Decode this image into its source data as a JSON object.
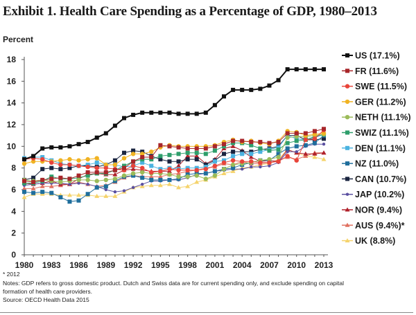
{
  "chart_data": {
    "type": "line",
    "title": "Exhibit 1. Health Care Spending as a Percentage of GDP, 1980–2013",
    "ylabel": "Percent",
    "xlabel": "",
    "x": [
      1980,
      1981,
      1982,
      1983,
      1984,
      1985,
      1986,
      1987,
      1988,
      1989,
      1990,
      1991,
      1992,
      1993,
      1994,
      1995,
      1996,
      1997,
      1998,
      1999,
      2000,
      2001,
      2002,
      2003,
      2004,
      2005,
      2006,
      2007,
      2008,
      2009,
      2010,
      2011,
      2012,
      2013
    ],
    "xticks": [
      "1980",
      "1983",
      "1986",
      "1989",
      "1992",
      "1995",
      "1998",
      "2001",
      "2004",
      "2007",
      "2010",
      "2013"
    ],
    "yticks": [
      "0",
      "2",
      "4",
      "6",
      "8",
      "10",
      "12",
      "14",
      "16",
      "18"
    ],
    "ylim": [
      0,
      18
    ],
    "xlim": [
      1980,
      2013
    ],
    "grid": false,
    "legend_placement": "right",
    "series": [
      {
        "name": "US (17.1%)",
        "color": "#111111",
        "marker": "square",
        "values": [
          8.8,
          9.1,
          9.8,
          9.9,
          9.9,
          10.0,
          10.2,
          10.4,
          10.8,
          11.2,
          11.9,
          12.6,
          12.9,
          13.1,
          13.1,
          13.1,
          13.1,
          13.0,
          13.0,
          13.0,
          13.1,
          13.8,
          14.6,
          15.2,
          15.2,
          15.2,
          15.3,
          15.6,
          16.1,
          17.1,
          17.1,
          17.1,
          17.1,
          17.1
        ]
      },
      {
        "name": "FR (11.6%)",
        "color": "#a8262a",
        "marker": "square",
        "values": [
          6.8,
          6.7,
          6.9,
          7.0,
          7.1,
          7.0,
          7.3,
          7.6,
          7.6,
          7.6,
          7.8,
          8.0,
          8.6,
          9.0,
          9.0,
          10.1,
          10.0,
          9.9,
          9.8,
          9.8,
          9.8,
          10.0,
          10.2,
          10.5,
          10.5,
          10.4,
          10.4,
          10.3,
          10.4,
          11.2,
          11.2,
          11.2,
          11.4,
          11.6
        ]
      },
      {
        "name": "SWE (11.5%)",
        "color": "#e8443a",
        "marker": "circle",
        "values": [
          8.8,
          8.9,
          8.8,
          8.5,
          8.3,
          8.3,
          8.2,
          8.1,
          8.0,
          8.0,
          7.9,
          7.8,
          8.2,
          8.0,
          7.6,
          7.7,
          7.9,
          7.8,
          7.8,
          7.8,
          7.9,
          8.2,
          8.5,
          8.7,
          8.6,
          8.6,
          8.5,
          8.5,
          8.6,
          9.1,
          8.7,
          10.6,
          10.7,
          11.5
        ]
      },
      {
        "name": "GER (11.2%)",
        "color": "#f0b323",
        "marker": "circle",
        "values": [
          8.4,
          8.6,
          8.6,
          8.6,
          8.7,
          8.8,
          8.7,
          8.8,
          8.9,
          8.3,
          8.3,
          8.9,
          9.3,
          9.3,
          9.5,
          9.9,
          10.1,
          10.0,
          10.0,
          10.0,
          10.0,
          10.1,
          10.4,
          10.6,
          10.4,
          10.5,
          10.3,
          10.2,
          10.5,
          11.4,
          11.3,
          11.0,
          11.1,
          11.2
        ]
      },
      {
        "name": "NETH (11.1%)",
        "color": "#9bbb59",
        "marker": "circle",
        "values": [
          6.9,
          6.8,
          6.9,
          6.8,
          6.7,
          6.8,
          6.9,
          6.9,
          6.8,
          6.9,
          7.0,
          7.3,
          7.5,
          7.6,
          7.5,
          7.5,
          7.4,
          7.2,
          7.2,
          7.3,
          7.0,
          7.3,
          7.9,
          8.3,
          8.4,
          8.5,
          8.7,
          8.8,
          9.0,
          10.8,
          10.9,
          10.9,
          11.0,
          11.1
        ]
      },
      {
        "name": "SWIZ (11.1%)",
        "color": "#2e9e6b",
        "marker": "square",
        "values": [
          6.6,
          6.6,
          6.8,
          7.2,
          7.0,
          7.0,
          7.1,
          7.3,
          7.5,
          7.5,
          7.8,
          8.2,
          8.6,
          8.8,
          8.8,
          9.1,
          9.2,
          9.3,
          9.4,
          9.4,
          9.3,
          9.6,
          10.0,
          10.3,
          10.3,
          10.1,
          9.8,
          9.6,
          9.7,
          10.3,
          10.5,
          10.6,
          10.9,
          11.1
        ]
      },
      {
        "name": "DEN (11.1%)",
        "color": "#4bb3e0",
        "marker": "square",
        "values": [
          8.9,
          9.0,
          9.0,
          8.7,
          8.4,
          8.3,
          8.2,
          8.3,
          8.5,
          8.3,
          8.3,
          8.1,
          8.2,
          8.5,
          8.2,
          7.9,
          8.0,
          7.9,
          8.0,
          8.0,
          8.1,
          8.6,
          8.7,
          9.1,
          9.3,
          9.3,
          9.5,
          9.7,
          9.9,
          11.0,
          10.7,
          10.6,
          10.8,
          11.1
        ]
      },
      {
        "name": "NZ (11.0%)",
        "color": "#1f6e9c",
        "marker": "square",
        "values": [
          5.8,
          5.7,
          5.8,
          5.7,
          5.3,
          4.9,
          5.0,
          5.6,
          6.2,
          6.3,
          6.8,
          7.2,
          7.3,
          7.1,
          6.9,
          6.9,
          6.9,
          7.0,
          7.4,
          7.5,
          7.5,
          7.7,
          7.9,
          8.0,
          8.3,
          8.5,
          8.7,
          8.7,
          9.3,
          9.8,
          10.0,
          10.1,
          10.3,
          11.0
        ]
      },
      {
        "name": "CAN (10.7%)",
        "color": "#1a2540",
        "marker": "square",
        "values": [
          6.9,
          7.1,
          7.9,
          8.0,
          7.9,
          8.0,
          8.2,
          8.2,
          8.1,
          8.3,
          8.7,
          9.4,
          9.6,
          9.5,
          9.1,
          8.8,
          8.6,
          8.6,
          8.8,
          8.8,
          8.3,
          8.7,
          9.3,
          9.5,
          9.5,
          9.5,
          9.7,
          9.8,
          10.0,
          11.0,
          11.0,
          10.6,
          10.6,
          10.7
        ]
      },
      {
        "name": "JAP (10.2%)",
        "color": "#5a4fa0",
        "marker": "circle-small",
        "values": [
          6.4,
          6.5,
          6.6,
          6.6,
          6.6,
          6.5,
          6.6,
          6.5,
          6.3,
          6.0,
          5.8,
          5.9,
          6.2,
          6.5,
          6.8,
          6.8,
          6.9,
          6.9,
          7.1,
          7.4,
          7.5,
          7.7,
          7.8,
          7.9,
          7.9,
          8.1,
          8.1,
          8.2,
          8.5,
          9.5,
          9.5,
          10.0,
          10.2,
          10.2
        ]
      },
      {
        "name": "NOR (9.4%)",
        "color": "#b0202a",
        "marker": "triangle",
        "values": [
          6.6,
          6.5,
          6.6,
          6.8,
          6.5,
          6.5,
          7.0,
          7.4,
          7.5,
          7.4,
          7.4,
          7.8,
          7.9,
          7.8,
          7.7,
          7.7,
          7.7,
          8.2,
          9.1,
          9.1,
          8.4,
          8.8,
          9.8,
          10.0,
          9.6,
          9.0,
          8.6,
          8.7,
          8.6,
          9.7,
          9.4,
          9.3,
          9.3,
          9.4
        ]
      },
      {
        "name": "AUS (9.4%)*",
        "color": "#e07060",
        "marker": "triangle",
        "values": [
          6.1,
          6.1,
          6.3,
          6.3,
          6.4,
          6.5,
          6.7,
          6.5,
          6.3,
          6.4,
          6.7,
          7.1,
          7.3,
          7.2,
          7.2,
          7.2,
          7.4,
          7.5,
          7.7,
          7.8,
          8.0,
          8.1,
          8.4,
          8.3,
          8.6,
          8.4,
          8.4,
          8.5,
          8.7,
          9.0,
          8.8,
          9.1,
          9.4,
          9.4
        ]
      },
      {
        "name": "UK (8.8%)",
        "color": "#f5d36b",
        "marker": "triangle",
        "values": [
          5.3,
          5.6,
          5.6,
          5.6,
          5.5,
          5.5,
          5.5,
          5.5,
          5.4,
          5.4,
          5.4,
          5.8,
          6.2,
          6.3,
          6.4,
          6.4,
          6.5,
          6.2,
          6.3,
          6.7,
          6.9,
          7.2,
          7.5,
          7.7,
          8.0,
          8.1,
          8.3,
          8.4,
          8.8,
          9.7,
          9.4,
          9.1,
          9.0,
          8.8
        ]
      }
    ]
  },
  "notes": {
    "footnote": "* 2012",
    "notes_line1": "Notes: GDP refers to gross domestic product. Dutch and Swiss data are for current spending only, and exclude spending on capital",
    "notes_line2": "formation of health care providers.",
    "source": "Source: OECD Health Data 2015"
  }
}
